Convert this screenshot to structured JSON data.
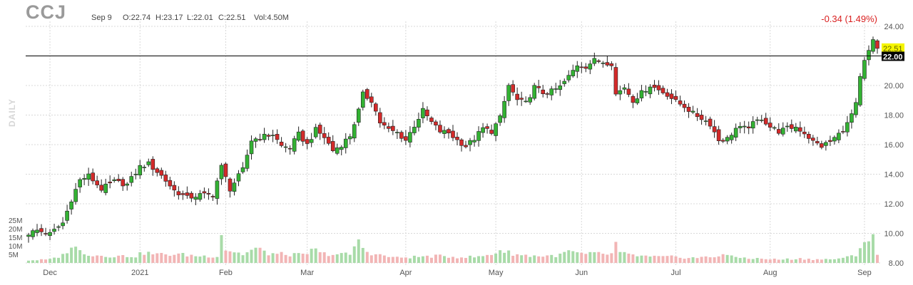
{
  "header": {
    "ticker": "CCJ",
    "date": "Sep 9",
    "open": "O:22.74",
    "high": "H:23.17",
    "low": "L:22.01",
    "close": "C:22.51",
    "volume": "Vol:4.50M",
    "change": "-0.34 (1.49%)",
    "timeframe": "DAILY"
  },
  "colors": {
    "up": "#33b233",
    "down": "#d42a2a",
    "vol_up": "#a8dba8",
    "vol_down": "#f2b5b5",
    "price_badge": "#f5f500",
    "line_badge": "#000000",
    "change_text": "#d92020"
  },
  "chart_data": {
    "type": "candlestick",
    "price_axis": {
      "ticks": [
        "24.00",
        "22.00",
        "20.00",
        "18.00",
        "16.00",
        "14.00",
        "12.00",
        "10.00",
        "8.00"
      ],
      "range": [
        8,
        24
      ]
    },
    "volume_axis": {
      "ticks": [
        "25M",
        "20M",
        "15M",
        "10M",
        "5M"
      ],
      "range": [
        0,
        25
      ]
    },
    "x_tick_labels": [
      {
        "label": "Dec",
        "day": 5
      },
      {
        "label": "2021",
        "day": 26
      },
      {
        "label": "Feb",
        "day": 46
      },
      {
        "label": "Mar",
        "day": 65
      },
      {
        "label": "Apr",
        "day": 88
      },
      {
        "label": "May",
        "day": 109
      },
      {
        "label": "Jun",
        "day": 129
      },
      {
        "label": "Jul",
        "day": 151
      },
      {
        "label": "Aug",
        "day": 173
      },
      {
        "label": "Sep",
        "day": 195
      }
    ],
    "grid": true,
    "horizontal_line": {
      "value": 22.0,
      "label": "22.00"
    },
    "last_price": {
      "value": 22.51,
      "label": "22.51"
    },
    "day_count": 199,
    "close_anchors": [
      [
        0,
        10.0
      ],
      [
        2,
        10.2
      ],
      [
        5,
        9.95
      ],
      [
        8,
        10.7
      ],
      [
        10,
        12.3
      ],
      [
        12,
        13.6
      ],
      [
        14,
        13.9
      ],
      [
        17,
        13.0
      ],
      [
        20,
        13.5
      ],
      [
        23,
        13.3
      ],
      [
        26,
        14.5
      ],
      [
        28,
        14.7
      ],
      [
        31,
        13.9
      ],
      [
        34,
        12.9
      ],
      [
        37,
        12.4
      ],
      [
        40,
        12.6
      ],
      [
        43,
        12.6
      ],
      [
        45,
        14.5
      ],
      [
        47,
        13.0
      ],
      [
        50,
        14.3
      ],
      [
        52,
        16.3
      ],
      [
        54,
        16.5
      ],
      [
        57,
        16.7
      ],
      [
        59,
        15.9
      ],
      [
        61,
        15.8
      ],
      [
        63,
        16.7
      ],
      [
        65,
        16.0
      ],
      [
        67,
        17.0
      ],
      [
        69,
        16.5
      ],
      [
        71,
        15.6
      ],
      [
        73,
        16.0
      ],
      [
        75,
        16.6
      ],
      [
        77,
        18.3
      ],
      [
        78,
        19.4
      ],
      [
        80,
        19.0
      ],
      [
        82,
        17.5
      ],
      [
        84,
        17.0
      ],
      [
        86,
        16.8
      ],
      [
        88,
        16.3
      ],
      [
        90,
        17.3
      ],
      [
        92,
        18.3
      ],
      [
        94,
        17.5
      ],
      [
        96,
        16.9
      ],
      [
        98,
        16.8
      ],
      [
        100,
        16.3
      ],
      [
        102,
        15.9
      ],
      [
        104,
        16.4
      ],
      [
        106,
        17.1
      ],
      [
        108,
        16.9
      ],
      [
        110,
        17.8
      ],
      [
        112,
        20.0
      ],
      [
        114,
        19.0
      ],
      [
        116,
        18.8
      ],
      [
        118,
        19.9
      ],
      [
        120,
        19.5
      ],
      [
        122,
        19.6
      ],
      [
        124,
        19.9
      ],
      [
        126,
        20.6
      ],
      [
        128,
        21.4
      ],
      [
        130,
        21.3
      ],
      [
        132,
        21.7
      ],
      [
        134,
        21.6
      ],
      [
        136,
        21.5
      ],
      [
        137,
        19.4
      ],
      [
        139,
        19.9
      ],
      [
        141,
        19.0
      ],
      [
        143,
        19.5
      ],
      [
        145,
        20.0
      ],
      [
        147,
        19.7
      ],
      [
        149,
        19.4
      ],
      [
        151,
        18.9
      ],
      [
        153,
        18.6
      ],
      [
        155,
        18.1
      ],
      [
        157,
        17.8
      ],
      [
        159,
        17.4
      ],
      [
        161,
        16.3
      ],
      [
        163,
        16.4
      ],
      [
        165,
        17.1
      ],
      [
        167,
        17.1
      ],
      [
        169,
        17.4
      ],
      [
        171,
        17.8
      ],
      [
        173,
        17.2
      ],
      [
        175,
        16.9
      ],
      [
        177,
        17.1
      ],
      [
        179,
        17.2
      ],
      [
        181,
        16.8
      ],
      [
        183,
        16.2
      ],
      [
        185,
        15.9
      ],
      [
        187,
        16.2
      ],
      [
        189,
        16.7
      ],
      [
        191,
        17.4
      ],
      [
        193,
        18.7
      ],
      [
        194,
        20.5
      ],
      [
        195,
        21.6
      ],
      [
        196,
        22.3
      ],
      [
        197,
        23.0
      ],
      [
        198,
        22.51
      ]
    ],
    "volume_anchors": [
      [
        0,
        1.5
      ],
      [
        5,
        2.0
      ],
      [
        8,
        4.5
      ],
      [
        10,
        10.0
      ],
      [
        12,
        7.0
      ],
      [
        15,
        4.5
      ],
      [
        20,
        4.0
      ],
      [
        25,
        4.0
      ],
      [
        27,
        6.0
      ],
      [
        30,
        5.0
      ],
      [
        35,
        5.0
      ],
      [
        40,
        4.0
      ],
      [
        44,
        4.0
      ],
      [
        45,
        17.0
      ],
      [
        46,
        8.0
      ],
      [
        50,
        5.0
      ],
      [
        53,
        8.5
      ],
      [
        56,
        5.5
      ],
      [
        60,
        5.0
      ],
      [
        65,
        4.5
      ],
      [
        66,
        9.0
      ],
      [
        68,
        5.5
      ],
      [
        72,
        5.0
      ],
      [
        75,
        5.0
      ],
      [
        76,
        9.5
      ],
      [
        77,
        12.0
      ],
      [
        79,
        6.5
      ],
      [
        82,
        4.5
      ],
      [
        86,
        3.0
      ],
      [
        90,
        3.5
      ],
      [
        95,
        4.0
      ],
      [
        100,
        3.5
      ],
      [
        105,
        3.5
      ],
      [
        108,
        5.0
      ],
      [
        110,
        7.5
      ],
      [
        112,
        6.0
      ],
      [
        115,
        4.5
      ],
      [
        120,
        4.0
      ],
      [
        124,
        4.5
      ],
      [
        126,
        7.0
      ],
      [
        128,
        5.5
      ],
      [
        130,
        5.0
      ],
      [
        133,
        5.5
      ],
      [
        136,
        5.0
      ],
      [
        137,
        12.0
      ],
      [
        138,
        5.5
      ],
      [
        141,
        4.5
      ],
      [
        145,
        3.5
      ],
      [
        150,
        3.5
      ],
      [
        155,
        3.0
      ],
      [
        160,
        3.5
      ],
      [
        162,
        5.5
      ],
      [
        164,
        3.5
      ],
      [
        170,
        2.5
      ],
      [
        175,
        2.0
      ],
      [
        180,
        2.5
      ],
      [
        185,
        2.0
      ],
      [
        190,
        2.5
      ],
      [
        193,
        5.0
      ],
      [
        195,
        13.0
      ],
      [
        196,
        14.0
      ],
      [
        197,
        14.0
      ],
      [
        198,
        5.0
      ]
    ]
  }
}
